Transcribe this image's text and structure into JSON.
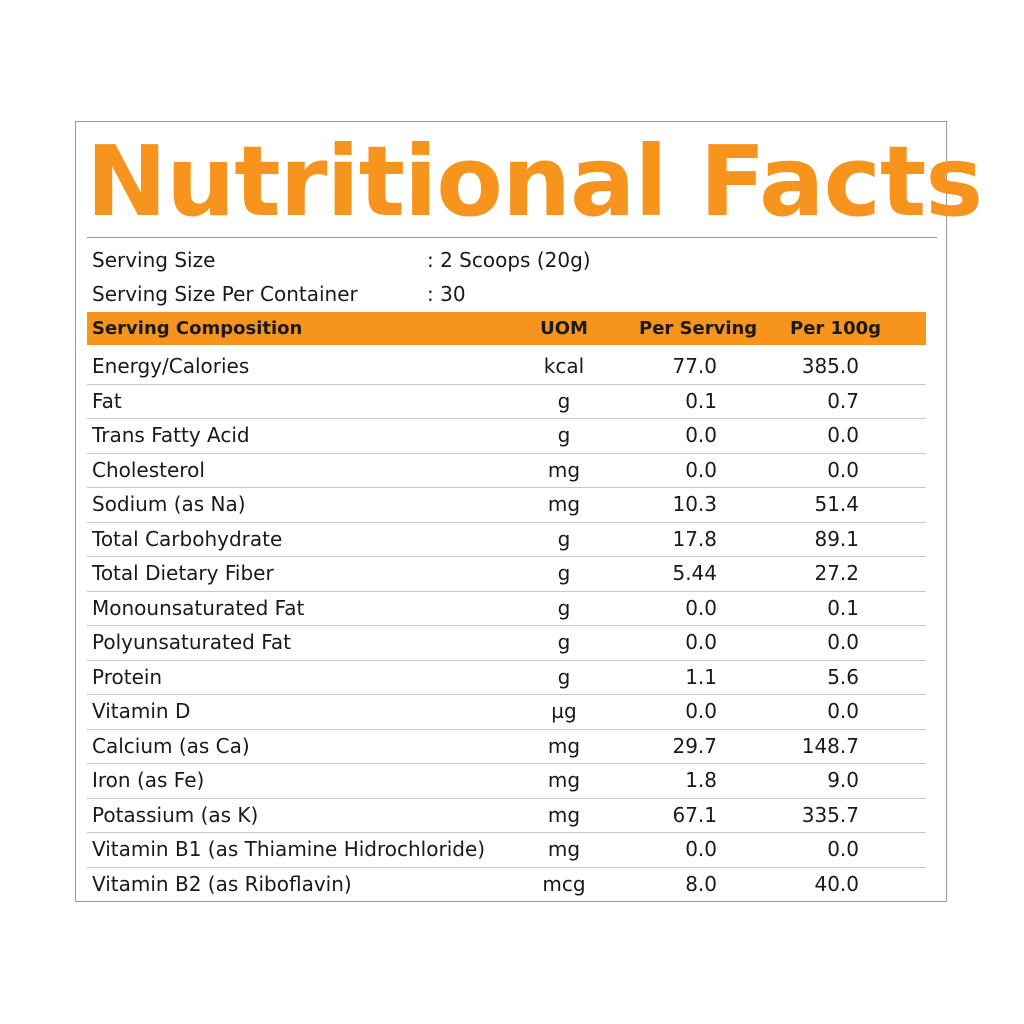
{
  "title": "Nutritional Facts",
  "serving": [
    {
      "key": "Serving Size",
      "value": ": 2 Scoops (20g)"
    },
    {
      "key": "Serving Size Per Container",
      "value": ": 30"
    }
  ],
  "columns": {
    "composition": "Serving Composition",
    "uom": "UOM",
    "per_serving": "Per Serving",
    "per_100g": "Per 100g"
  },
  "rows": [
    {
      "name": "Energy/Calories",
      "uom": "kcal",
      "per_serving": "77.0",
      "per_100g": "385.0"
    },
    {
      "name": "Fat",
      "uom": "g",
      "per_serving": "0.1",
      "per_100g": "0.7"
    },
    {
      "name": "Trans Fatty Acid",
      "uom": "g",
      "per_serving": "0.0",
      "per_100g": "0.0"
    },
    {
      "name": "Cholesterol",
      "uom": "mg",
      "per_serving": "0.0",
      "per_100g": "0.0"
    },
    {
      "name": "Sodium (as Na)",
      "uom": "mg",
      "per_serving": "10.3",
      "per_100g": "51.4"
    },
    {
      "name": "Total Carbohydrate",
      "uom": "g",
      "per_serving": "17.8",
      "per_100g": "89.1"
    },
    {
      "name": "Total Dietary Fiber",
      "uom": "g",
      "per_serving": "5.44",
      "per_100g": "27.2"
    },
    {
      "name": "Monounsaturated Fat",
      "uom": "g",
      "per_serving": "0.0",
      "per_100g": "0.1"
    },
    {
      "name": "Polyunsaturated Fat",
      "uom": "g",
      "per_serving": "0.0",
      "per_100g": "0.0"
    },
    {
      "name": "Protein",
      "uom": "g",
      "per_serving": "1.1",
      "per_100g": "5.6"
    },
    {
      "name": "Vitamin D",
      "uom": "µg",
      "per_serving": "0.0",
      "per_100g": "0.0"
    },
    {
      "name": "Calcium (as Ca)",
      "uom": "mg",
      "per_serving": "29.7",
      "per_100g": "148.7"
    },
    {
      "name": "Iron (as Fe)",
      "uom": "mg",
      "per_serving": "1.8",
      "per_100g": "9.0"
    },
    {
      "name": "Potassium (as K)",
      "uom": "mg",
      "per_serving": "67.1",
      "per_100g": "335.7"
    },
    {
      "name": "Vitamin B1 (as Thiamine Hidrochloride)",
      "uom": "mg",
      "per_serving": "0.0",
      "per_100g": "0.0"
    },
    {
      "name": "Vitamin B2 (as Riboflavin)",
      "uom": "mcg",
      "per_serving": "8.0",
      "per_100g": "40.0"
    }
  ],
  "colors": {
    "accent": "#f7941d",
    "text": "#1a1a1a",
    "border": "#9a9a9a"
  }
}
